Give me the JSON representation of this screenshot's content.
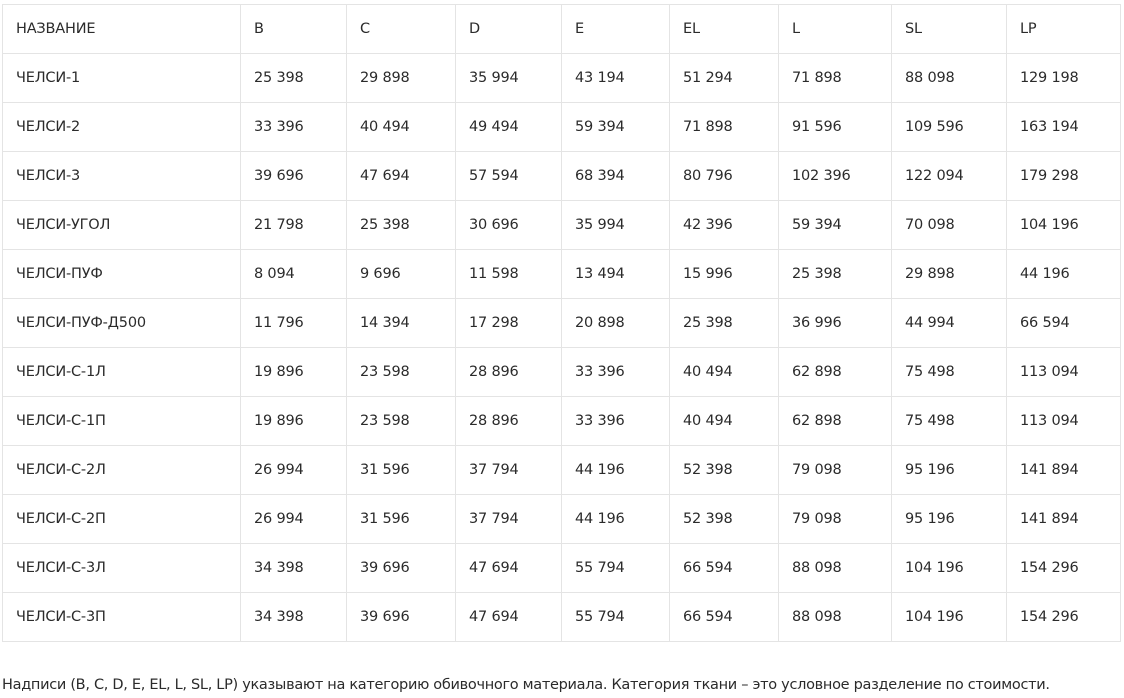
{
  "table": {
    "headers": [
      "НАЗВАНИЕ",
      "B",
      "C",
      "D",
      "E",
      "EL",
      "L",
      "SL",
      "LP"
    ],
    "rows": [
      [
        "ЧЕЛСИ-1",
        "25 398",
        "29 898",
        "35 994",
        "43 194",
        "51 294",
        "71 898",
        "88 098",
        "129 198"
      ],
      [
        "ЧЕЛСИ-2",
        "33 396",
        "40 494",
        "49 494",
        "59 394",
        "71 898",
        "91 596",
        "109 596",
        "163 194"
      ],
      [
        "ЧЕЛСИ-3",
        "39 696",
        "47 694",
        "57 594",
        "68 394",
        "80 796",
        "102 396",
        "122 094",
        "179 298"
      ],
      [
        "ЧЕЛСИ-УГОЛ",
        "21 798",
        "25 398",
        "30 696",
        "35 994",
        "42 396",
        "59 394",
        "70 098",
        "104 196"
      ],
      [
        "ЧЕЛСИ-ПУФ",
        "8 094",
        "9 696",
        "11 598",
        "13 494",
        "15 996",
        "25 398",
        "29 898",
        "44 196"
      ],
      [
        "ЧЕЛСИ-ПУФ-Д500",
        "11 796",
        "14 394",
        "17 298",
        "20 898",
        "25 398",
        "36 996",
        "44 994",
        "66 594"
      ],
      [
        "ЧЕЛСИ-С-1Л",
        "19 896",
        "23 598",
        "28 896",
        "33 396",
        "40 494",
        "62 898",
        "75 498",
        "113 094"
      ],
      [
        "ЧЕЛСИ-С-1П",
        "19 896",
        "23 598",
        "28 896",
        "33 396",
        "40 494",
        "62 898",
        "75 498",
        "113 094"
      ],
      [
        "ЧЕЛСИ-С-2Л",
        "26 994",
        "31 596",
        "37 794",
        "44 196",
        "52 398",
        "79 098",
        "95 196",
        "141 894"
      ],
      [
        "ЧЕЛСИ-С-2П",
        "26 994",
        "31 596",
        "37 794",
        "44 196",
        "52 398",
        "79 098",
        "95 196",
        "141 894"
      ],
      [
        "ЧЕЛСИ-С-3Л",
        "34 398",
        "39 696",
        "47 694",
        "55 794",
        "66 594",
        "88 098",
        "104 196",
        "154 296"
      ],
      [
        "ЧЕЛСИ-С-3П",
        "34 398",
        "39 696",
        "47 694",
        "55 794",
        "66 594",
        "88 098",
        "104 196",
        "154 296"
      ]
    ]
  },
  "footnote": "Надписи (B, C, D, E, EL, L, SL, LP) указывают на категорию обивочного материала. Категория ткани – это условное разделение по стоимости.",
  "colors": {
    "text": "#2b2b2b",
    "border": "#e4e4e4",
    "background": "#ffffff"
  }
}
